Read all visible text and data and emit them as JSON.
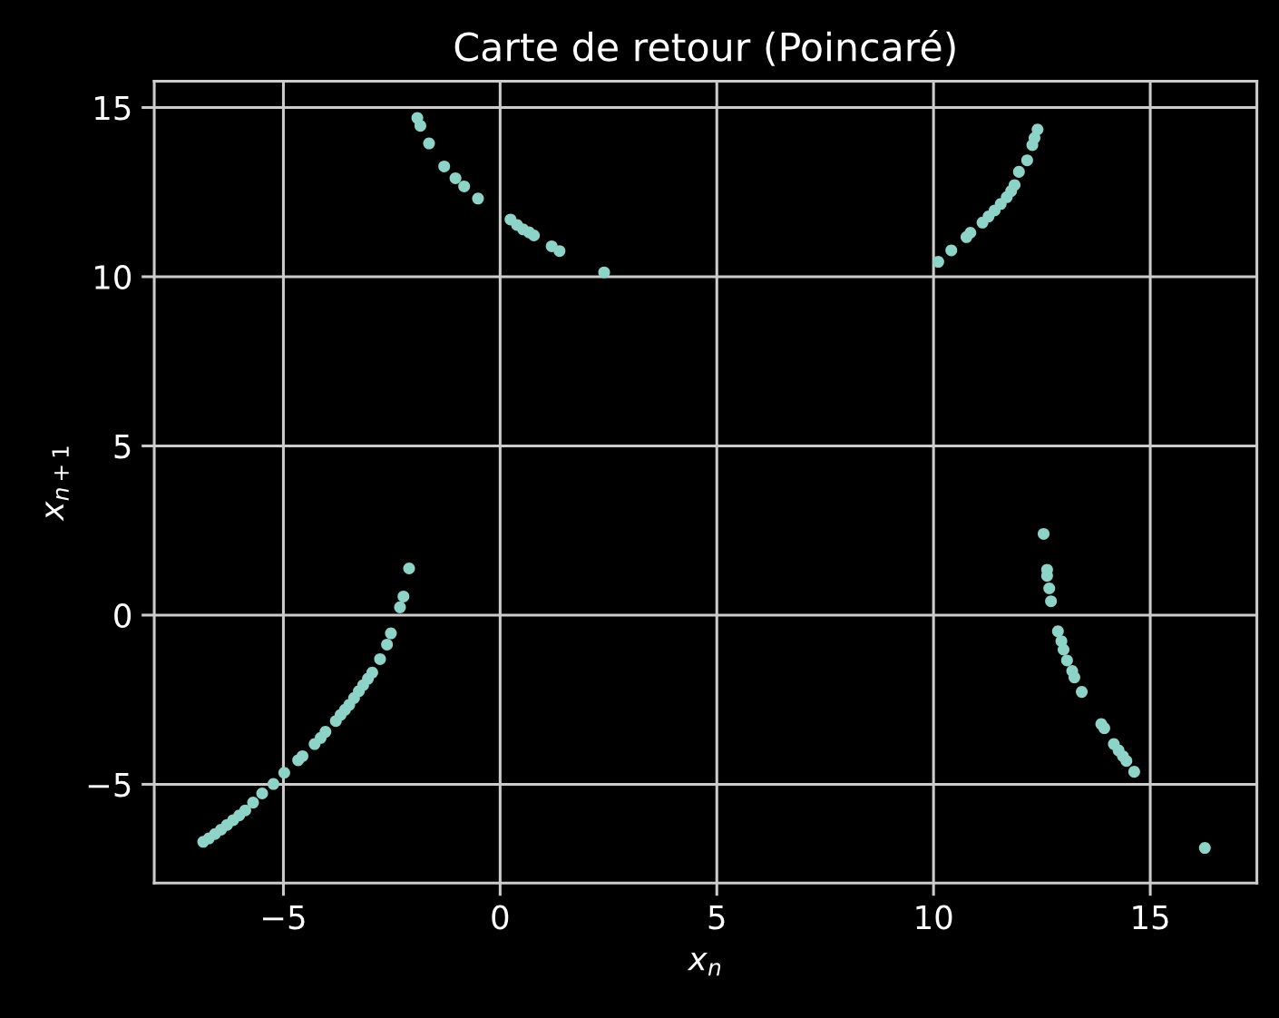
{
  "chart_data": {
    "type": "scatter",
    "title": "Carte de retour (Poincaré)",
    "xlabel": "x$_{n}$",
    "ylabel": "x$_{n+1}$",
    "series": [
      {
        "color": "#8dd3c7",
        "x": [
          -2.1,
          -2.23,
          -2.31,
          -2.52,
          -2.61,
          -2.77,
          -2.95,
          -3.05,
          -3.16,
          -3.26,
          -3.37,
          -3.48,
          -3.58,
          -3.68,
          -3.79,
          -4.03,
          -4.14,
          -4.28,
          -4.56,
          -4.66,
          -4.98,
          -5.23,
          -5.49,
          -5.7,
          -5.88,
          -6.02,
          -6.16,
          -6.3,
          -6.44,
          -6.58,
          -6.72,
          -6.85,
          -1.91,
          -1.84,
          -1.64,
          -1.29,
          -1.03,
          -0.83,
          -0.51,
          0.24,
          0.39,
          0.53,
          0.67,
          0.78,
          1.19,
          1.37,
          2.4,
          10.11,
          10.41,
          10.76,
          10.85,
          11.13,
          11.27,
          11.41,
          11.55,
          11.69,
          11.79,
          11.87,
          11.97,
          12.16,
          12.28,
          12.33,
          12.4,
          12.54,
          12.62,
          12.62,
          12.67,
          12.71,
          12.87,
          12.95,
          13.0,
          13.08,
          13.2,
          13.25,
          13.42,
          13.87,
          13.94,
          14.16,
          14.27,
          14.37,
          14.45,
          14.63,
          16.26
        ],
        "values": [
          1.38,
          0.55,
          0.23,
          -0.54,
          -0.87,
          -1.3,
          -1.7,
          -1.88,
          -2.07,
          -2.25,
          -2.45,
          -2.65,
          -2.8,
          -2.95,
          -3.13,
          -3.45,
          -3.63,
          -3.81,
          -4.17,
          -4.29,
          -4.66,
          -4.99,
          -5.27,
          -5.54,
          -5.77,
          -5.92,
          -6.06,
          -6.2,
          -6.34,
          -6.47,
          -6.6,
          -6.7,
          14.69,
          14.46,
          13.94,
          13.26,
          12.91,
          12.67,
          12.31,
          11.69,
          11.53,
          11.4,
          11.31,
          11.22,
          10.9,
          10.76,
          10.13,
          10.44,
          10.78,
          11.17,
          11.3,
          11.6,
          11.78,
          11.96,
          12.15,
          12.35,
          12.53,
          12.71,
          13.1,
          13.44,
          13.89,
          14.1,
          14.35,
          2.4,
          1.34,
          1.16,
          0.79,
          0.41,
          -0.48,
          -0.77,
          -1.02,
          -1.34,
          -1.65,
          -1.84,
          -2.27,
          -3.22,
          -3.34,
          -3.81,
          -4.0,
          -4.17,
          -4.31,
          -4.63,
          -6.88
        ]
      }
    ],
    "xlim": [
      -7.98,
      17.46
    ],
    "ylim": [
      -7.92,
      15.78
    ],
    "xticks": [
      -5,
      0,
      5,
      10,
      15
    ],
    "yticks": [
      -5,
      0,
      5,
      10,
      15
    ],
    "grid": true,
    "marker": "circle"
  }
}
